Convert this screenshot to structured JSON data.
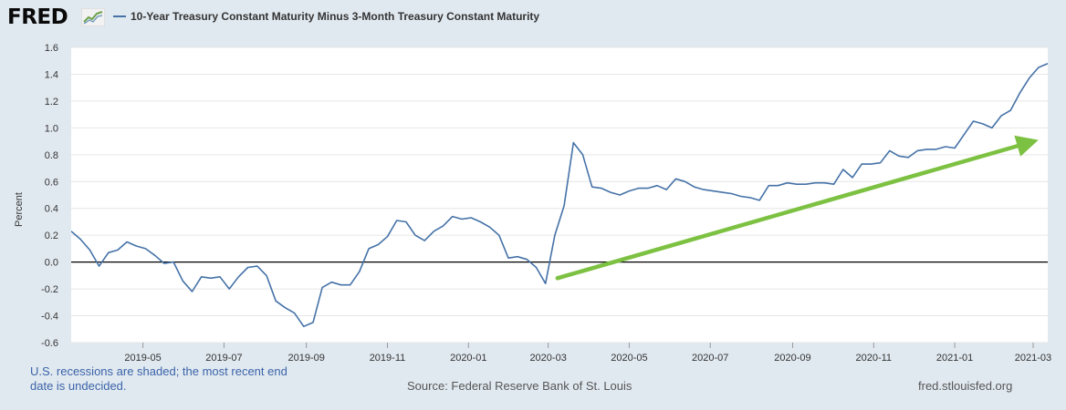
{
  "header": {
    "logo_text": "FRED",
    "logo_icon": "trend-graph-icon"
  },
  "footer": {
    "note": "U.S. recessions are shaded; the most recent end date is undecided.",
    "source": "Source: Federal Reserve Bank of St. Louis",
    "url": "fred.stlouisfed.org"
  },
  "colors": {
    "background": "#e1e9f0",
    "plot_background": "#ffffff",
    "series": "#4572a7",
    "zero_line": "#000000",
    "annotation_arrow": "#7dc142",
    "footer_note": "#3a63a8"
  },
  "chart_data": {
    "type": "line",
    "title": "",
    "ylabel": "Percent",
    "xlabel": "",
    "ylim": [
      -0.6,
      1.6
    ],
    "yticks": [
      -0.6,
      -0.4,
      -0.2,
      0.0,
      0.2,
      0.4,
      0.6,
      0.8,
      1.0,
      1.2,
      1.4,
      1.6
    ],
    "ytick_labels": [
      "-0.6",
      "-0.4",
      "-0.2",
      "0.0",
      "0.2",
      "0.4",
      "0.6",
      "0.8",
      "1.0",
      "1.2",
      "1.4",
      "1.6"
    ],
    "xlim": [
      "2019-03-08",
      "2021-03-12"
    ],
    "xticks": [
      "2019-05-01",
      "2019-07-01",
      "2019-09-01",
      "2019-11-01",
      "2020-01-01",
      "2020-03-01",
      "2020-05-01",
      "2020-07-01",
      "2020-09-01",
      "2020-11-01",
      "2021-01-01",
      "2021-03-01"
    ],
    "xtick_labels": [
      "2019-05",
      "2019-07",
      "2019-09",
      "2019-11",
      "2020-01",
      "2020-03",
      "2020-05",
      "2020-07",
      "2020-09",
      "2020-11",
      "2021-01",
      "2021-03"
    ],
    "grid": "horizontal",
    "legend_position": "top",
    "series": [
      {
        "name": "10-Year Treasury Constant Maturity Minus 3-Month Treasury Constant Maturity",
        "x": [
          "2019-03-08",
          "2019-03-15",
          "2019-03-22",
          "2019-03-29",
          "2019-04-05",
          "2019-04-12",
          "2019-04-19",
          "2019-04-26",
          "2019-05-03",
          "2019-05-10",
          "2019-05-17",
          "2019-05-24",
          "2019-05-31",
          "2019-06-07",
          "2019-06-14",
          "2019-06-21",
          "2019-06-28",
          "2019-07-05",
          "2019-07-12",
          "2019-07-19",
          "2019-07-26",
          "2019-08-02",
          "2019-08-09",
          "2019-08-16",
          "2019-08-23",
          "2019-08-30",
          "2019-09-06",
          "2019-09-13",
          "2019-09-20",
          "2019-09-27",
          "2019-10-04",
          "2019-10-11",
          "2019-10-18",
          "2019-10-25",
          "2019-11-01",
          "2019-11-08",
          "2019-11-15",
          "2019-11-22",
          "2019-11-29",
          "2019-12-06",
          "2019-12-13",
          "2019-12-20",
          "2019-12-27",
          "2020-01-03",
          "2020-01-10",
          "2020-01-17",
          "2020-01-24",
          "2020-01-31",
          "2020-02-07",
          "2020-02-14",
          "2020-02-21",
          "2020-02-28",
          "2020-03-06",
          "2020-03-13",
          "2020-03-20",
          "2020-03-27",
          "2020-04-03",
          "2020-04-10",
          "2020-04-17",
          "2020-04-24",
          "2020-05-01",
          "2020-05-08",
          "2020-05-15",
          "2020-05-22",
          "2020-05-29",
          "2020-06-05",
          "2020-06-12",
          "2020-06-19",
          "2020-06-26",
          "2020-07-03",
          "2020-07-10",
          "2020-07-17",
          "2020-07-24",
          "2020-07-31",
          "2020-08-07",
          "2020-08-14",
          "2020-08-21",
          "2020-08-28",
          "2020-09-04",
          "2020-09-11",
          "2020-09-18",
          "2020-09-25",
          "2020-10-02",
          "2020-10-09",
          "2020-10-16",
          "2020-10-23",
          "2020-10-30",
          "2020-11-06",
          "2020-11-13",
          "2020-11-20",
          "2020-11-27",
          "2020-12-04",
          "2020-12-11",
          "2020-12-18",
          "2020-12-25",
          "2021-01-01",
          "2021-01-08",
          "2021-01-15",
          "2021-01-22",
          "2021-01-29",
          "2021-02-05",
          "2021-02-12",
          "2021-02-19",
          "2021-02-26",
          "2021-03-05",
          "2021-03-12"
        ],
        "values": [
          0.23,
          0.17,
          0.09,
          -0.03,
          0.07,
          0.09,
          0.15,
          0.12,
          0.1,
          0.05,
          -0.01,
          0.0,
          -0.14,
          -0.22,
          -0.11,
          -0.12,
          -0.11,
          -0.2,
          -0.11,
          -0.04,
          -0.03,
          -0.1,
          -0.29,
          -0.34,
          -0.38,
          -0.48,
          -0.45,
          -0.19,
          -0.15,
          -0.17,
          -0.17,
          -0.07,
          0.1,
          0.13,
          0.19,
          0.31,
          0.3,
          0.2,
          0.16,
          0.23,
          0.27,
          0.34,
          0.32,
          0.33,
          0.3,
          0.26,
          0.2,
          0.03,
          0.04,
          0.02,
          -0.04,
          -0.16,
          0.2,
          0.42,
          0.89,
          0.8,
          0.56,
          0.55,
          0.52,
          0.5,
          0.53,
          0.55,
          0.55,
          0.57,
          0.54,
          0.62,
          0.6,
          0.56,
          0.54,
          0.53,
          0.52,
          0.51,
          0.49,
          0.48,
          0.46,
          0.57,
          0.57,
          0.59,
          0.58,
          0.58,
          0.59,
          0.59,
          0.58,
          0.69,
          0.63,
          0.73,
          0.73,
          0.74,
          0.83,
          0.79,
          0.78,
          0.83,
          0.84,
          0.84,
          0.86,
          0.85,
          0.95,
          1.05,
          1.03,
          1.0,
          1.09,
          1.13,
          1.26,
          1.37,
          1.45,
          1.48
        ]
      }
    ],
    "annotations": [
      {
        "type": "arrow",
        "from": [
          "2020-03-08",
          -0.12
        ],
        "to": [
          "2021-03-05",
          0.91
        ]
      }
    ]
  }
}
